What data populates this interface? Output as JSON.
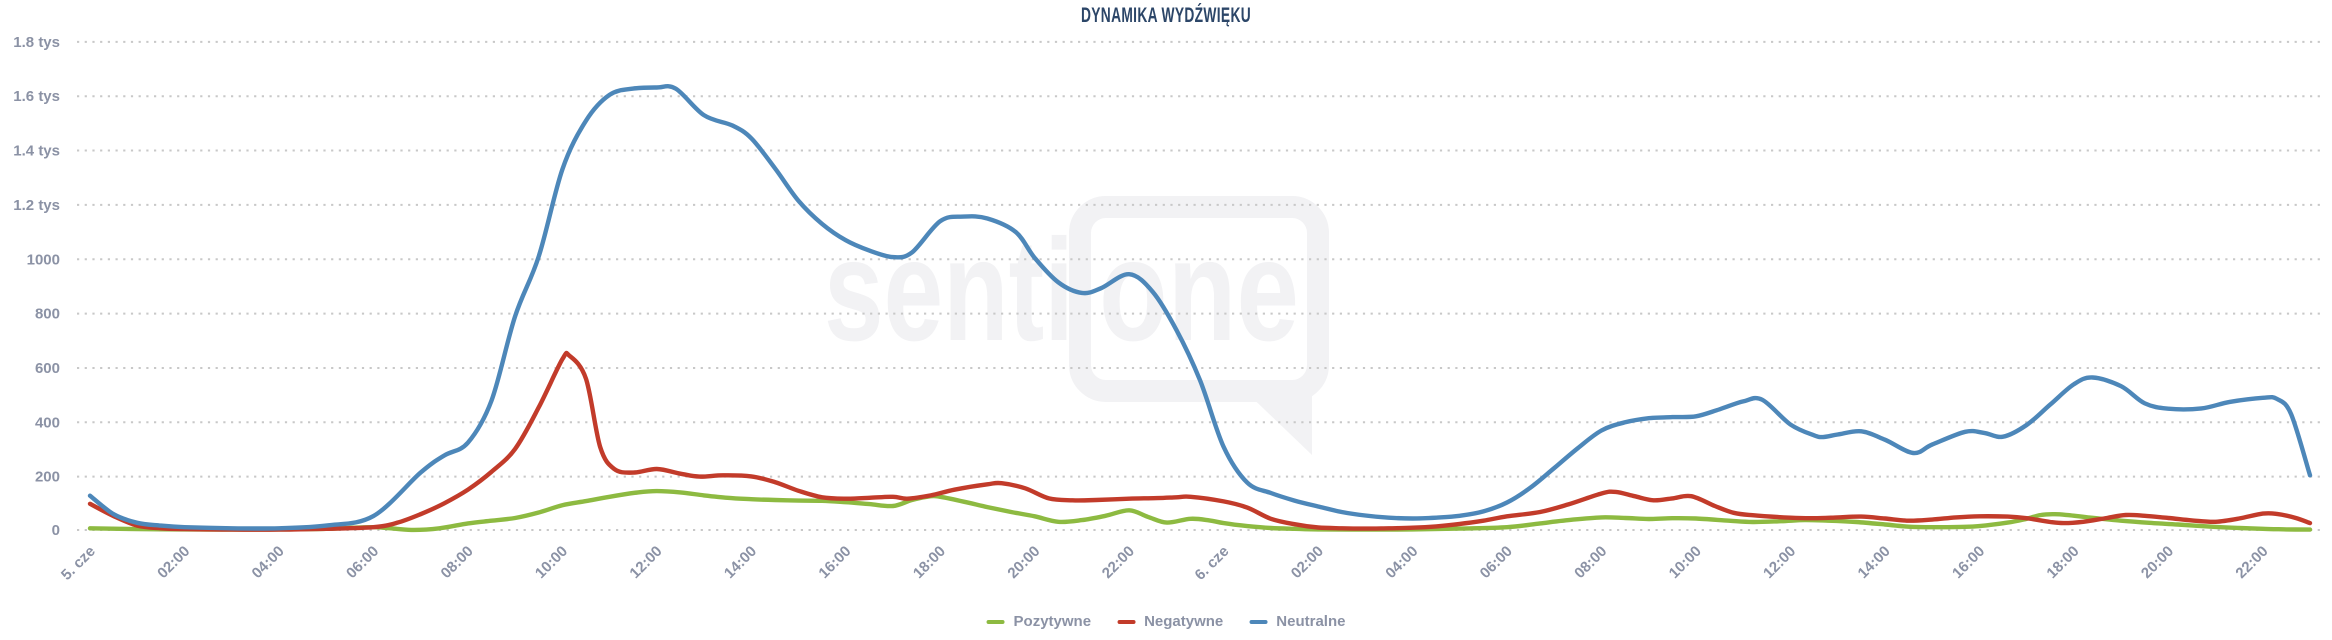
{
  "title": "DYNAMIKA WYDŹWIĘKU",
  "watermark": {
    "brand": "sentione",
    "part1": "senti",
    "part2": "one"
  },
  "colors": {
    "positive": "#8dba41",
    "negative": "#c23b2a",
    "neutral": "#4d87b9",
    "axis_text": "#8b92a5",
    "title_text": "#2c4668",
    "gridline": "#c8c8c8",
    "watermark": "#f2f2f4",
    "background": "#ffffff"
  },
  "chart_data": {
    "type": "line",
    "title": "DYNAMIKA WYDŹWIĘKU",
    "grid": "horizontal-dotted",
    "legend_position": "bottom-center",
    "x_axis": {
      "description": "time, 5-6 June (cze), ticks every 2 hours",
      "tick_labels": [
        "5. cze",
        "02:00",
        "04:00",
        "06:00",
        "08:00",
        "10:00",
        "12:00",
        "14:00",
        "16:00",
        "18:00",
        "20:00",
        "22:00",
        "6. cze",
        "02:00",
        "04:00",
        "06:00",
        "08:00",
        "10:00",
        "12:00",
        "14:00",
        "16:00",
        "18:00",
        "20:00",
        "22:00"
      ],
      "tick_interval_hours": 2,
      "hours_domain": [
        0,
        47
      ]
    },
    "y_axis": {
      "range": [
        0,
        1800
      ],
      "ticks": [
        {
          "v": 0,
          "label": "0"
        },
        {
          "v": 200,
          "label": "200"
        },
        {
          "v": 400,
          "label": "400"
        },
        {
          "v": 600,
          "label": "600"
        },
        {
          "v": 800,
          "label": "800"
        },
        {
          "v": 1000,
          "label": "1000"
        },
        {
          "v": 1200,
          "label": "1.2 tys"
        },
        {
          "v": 1400,
          "label": "1.4 tys"
        },
        {
          "v": 1600,
          "label": "1.6 tys"
        },
        {
          "v": 1800,
          "label": "1.8 tys"
        }
      ]
    },
    "series": [
      {
        "id": "pozytywne",
        "name": "Pozytywne",
        "color": "#8dba41",
        "points": [
          [
            0,
            10
          ],
          [
            1,
            7
          ],
          [
            2,
            6
          ],
          [
            3,
            5
          ],
          [
            4,
            6
          ],
          [
            5,
            8
          ],
          [
            6,
            14
          ],
          [
            6.8,
            4
          ],
          [
            7.4,
            10
          ],
          [
            8,
            28
          ],
          [
            8.5,
            38
          ],
          [
            9,
            48
          ],
          [
            9.5,
            68
          ],
          [
            10,
            95
          ],
          [
            10.5,
            110
          ],
          [
            11,
            126
          ],
          [
            11.6,
            142
          ],
          [
            12,
            147
          ],
          [
            12.5,
            142
          ],
          [
            13,
            131
          ],
          [
            13.5,
            122
          ],
          [
            14,
            117
          ],
          [
            14.5,
            114
          ],
          [
            15,
            112
          ],
          [
            15.5,
            111
          ],
          [
            16,
            106
          ],
          [
            16.5,
            99
          ],
          [
            17,
            92
          ],
          [
            17.4,
            114
          ],
          [
            17.8,
            128
          ],
          [
            18,
            126
          ],
          [
            18.5,
            108
          ],
          [
            19,
            88
          ],
          [
            19.5,
            70
          ],
          [
            20,
            54
          ],
          [
            20.5,
            34
          ],
          [
            21,
            40
          ],
          [
            21.5,
            56
          ],
          [
            22,
            76
          ],
          [
            22.4,
            52
          ],
          [
            22.8,
            31
          ],
          [
            23.3,
            45
          ],
          [
            23.7,
            39
          ],
          [
            24,
            29
          ],
          [
            24.5,
            18
          ],
          [
            25,
            11
          ],
          [
            25.5,
            8
          ],
          [
            26,
            6
          ],
          [
            27,
            5
          ],
          [
            28,
            6
          ],
          [
            29,
            9
          ],
          [
            30,
            14
          ],
          [
            30.7,
            28
          ],
          [
            31.4,
            42
          ],
          [
            32,
            50
          ],
          [
            32.5,
            48
          ],
          [
            33,
            44
          ],
          [
            33.5,
            47
          ],
          [
            34,
            46
          ],
          [
            34.7,
            38
          ],
          [
            35.2,
            33
          ],
          [
            35.8,
            36
          ],
          [
            36.3,
            40
          ],
          [
            36.8,
            38
          ],
          [
            37.4,
            33
          ],
          [
            38,
            24
          ],
          [
            38.5,
            16
          ],
          [
            39,
            14
          ],
          [
            39.6,
            15
          ],
          [
            40,
            18
          ],
          [
            40.6,
            31
          ],
          [
            41,
            45
          ],
          [
            41.3,
            59
          ],
          [
            41.6,
            62
          ],
          [
            41.9,
            58
          ],
          [
            42.3,
            50
          ],
          [
            43,
            38
          ],
          [
            43.6,
            30
          ],
          [
            44.2,
            24
          ],
          [
            45,
            15
          ],
          [
            45.5,
            11
          ],
          [
            46,
            8
          ],
          [
            46.5,
            6
          ],
          [
            47,
            5
          ]
        ]
      },
      {
        "id": "negatywne",
        "name": "Negatywne",
        "color": "#c23b2a",
        "points": [
          [
            0,
            100
          ],
          [
            0.5,
            55
          ],
          [
            1,
            20
          ],
          [
            1.5,
            10
          ],
          [
            2,
            7
          ],
          [
            3,
            5
          ],
          [
            4,
            5
          ],
          [
            5,
            8
          ],
          [
            6,
            14
          ],
          [
            6.5,
            30
          ],
          [
            7,
            62
          ],
          [
            7.5,
            102
          ],
          [
            8,
            152
          ],
          [
            8.5,
            218
          ],
          [
            9,
            302
          ],
          [
            9.5,
            455
          ],
          [
            10,
            632
          ],
          [
            10.15,
            645
          ],
          [
            10.5,
            560
          ],
          [
            10.8,
            310
          ],
          [
            11.1,
            228
          ],
          [
            11.5,
            215
          ],
          [
            12,
            228
          ],
          [
            12.5,
            211
          ],
          [
            12.9,
            200
          ],
          [
            13.4,
            205
          ],
          [
            14,
            201
          ],
          [
            14.5,
            180
          ],
          [
            15,
            148
          ],
          [
            15.5,
            124
          ],
          [
            16,
            119
          ],
          [
            16.5,
            122
          ],
          [
            17,
            126
          ],
          [
            17.3,
            119
          ],
          [
            17.8,
            131
          ],
          [
            18.3,
            152
          ],
          [
            19,
            172
          ],
          [
            19.3,
            176
          ],
          [
            19.8,
            157
          ],
          [
            20.3,
            120
          ],
          [
            20.8,
            113
          ],
          [
            21.3,
            114
          ],
          [
            22,
            119
          ],
          [
            22.6,
            121
          ],
          [
            23,
            124
          ],
          [
            23.3,
            126
          ],
          [
            24,
            109
          ],
          [
            24.5,
            86
          ],
          [
            25,
            45
          ],
          [
            25.5,
            25
          ],
          [
            26,
            13
          ],
          [
            26.5,
            10
          ],
          [
            27,
            9
          ],
          [
            27.5,
            10
          ],
          [
            28,
            12
          ],
          [
            28.5,
            17
          ],
          [
            29,
            26
          ],
          [
            29.5,
            38
          ],
          [
            30,
            54
          ],
          [
            30.7,
            70
          ],
          [
            31.3,
            98
          ],
          [
            32,
            138
          ],
          [
            32.3,
            144
          ],
          [
            32.7,
            128
          ],
          [
            33.1,
            113
          ],
          [
            33.5,
            120
          ],
          [
            33.9,
            128
          ],
          [
            34.4,
            92
          ],
          [
            34.8,
            67
          ],
          [
            35.2,
            58
          ],
          [
            36,
            49
          ],
          [
            36.5,
            47
          ],
          [
            37,
            50
          ],
          [
            37.5,
            53
          ],
          [
            38,
            46
          ],
          [
            38.5,
            38
          ],
          [
            39,
            42
          ],
          [
            39.5,
            50
          ],
          [
            40,
            54
          ],
          [
            40.6,
            53
          ],
          [
            41,
            47
          ],
          [
            41.5,
            33
          ],
          [
            41.8,
            29
          ],
          [
            42.2,
            34
          ],
          [
            42.7,
            48
          ],
          [
            43.1,
            59
          ],
          [
            43.5,
            56
          ],
          [
            44,
            48
          ],
          [
            44.5,
            39
          ],
          [
            45,
            34
          ],
          [
            45.5,
            46
          ],
          [
            46,
            64
          ],
          [
            46.3,
            63
          ],
          [
            46.7,
            48
          ],
          [
            47,
            29
          ]
        ]
      },
      {
        "id": "neutralne",
        "name": "Neutralne",
        "color": "#4d87b9",
        "points": [
          [
            0,
            130
          ],
          [
            0.5,
            62
          ],
          [
            1,
            30
          ],
          [
            1.5,
            20
          ],
          [
            2,
            14
          ],
          [
            3,
            10
          ],
          [
            4,
            10
          ],
          [
            5,
            20
          ],
          [
            6,
            55
          ],
          [
            7,
            215
          ],
          [
            7.5,
            278
          ],
          [
            8,
            325
          ],
          [
            8.5,
            480
          ],
          [
            9,
            790
          ],
          [
            9.5,
            1010
          ],
          [
            10,
            1330
          ],
          [
            10.5,
            1510
          ],
          [
            11,
            1605
          ],
          [
            11.5,
            1628
          ],
          [
            12,
            1632
          ],
          [
            12.4,
            1628
          ],
          [
            13,
            1530
          ],
          [
            13.6,
            1492
          ],
          [
            14,
            1445
          ],
          [
            14.5,
            1335
          ],
          [
            15,
            1215
          ],
          [
            15.5,
            1130
          ],
          [
            16,
            1070
          ],
          [
            16.5,
            1032
          ],
          [
            17,
            1008
          ],
          [
            17.4,
            1025
          ],
          [
            18,
            1140
          ],
          [
            18.5,
            1157
          ],
          [
            19,
            1150
          ],
          [
            19.6,
            1100
          ],
          [
            20,
            1005
          ],
          [
            20.5,
            915
          ],
          [
            21,
            876
          ],
          [
            21.4,
            893
          ],
          [
            22,
            945
          ],
          [
            22.5,
            880
          ],
          [
            23,
            740
          ],
          [
            23.5,
            555
          ],
          [
            24,
            310
          ],
          [
            24.5,
            178
          ],
          [
            25,
            140
          ],
          [
            25.5,
            112
          ],
          [
            26,
            90
          ],
          [
            26.5,
            70
          ],
          [
            27,
            57
          ],
          [
            27.5,
            49
          ],
          [
            28,
            46
          ],
          [
            28.5,
            49
          ],
          [
            29,
            56
          ],
          [
            29.5,
            72
          ],
          [
            30,
            105
          ],
          [
            30.5,
            160
          ],
          [
            31,
            232
          ],
          [
            31.5,
            305
          ],
          [
            32,
            370
          ],
          [
            32.5,
            400
          ],
          [
            33,
            415
          ],
          [
            33.5,
            419
          ],
          [
            34,
            422
          ],
          [
            34.5,
            448
          ],
          [
            35,
            477
          ],
          [
            35.4,
            483
          ],
          [
            36,
            392
          ],
          [
            36.5,
            352
          ],
          [
            36.7,
            346
          ],
          [
            37,
            355
          ],
          [
            37.5,
            367
          ],
          [
            38,
            336
          ],
          [
            38.6,
            287
          ],
          [
            39,
            318
          ],
          [
            39.7,
            365
          ],
          [
            40.1,
            361
          ],
          [
            40.5,
            347
          ],
          [
            41,
            390
          ],
          [
            41.5,
            465
          ],
          [
            42,
            540
          ],
          [
            42.4,
            565
          ],
          [
            43,
            533
          ],
          [
            43.5,
            470
          ],
          [
            44,
            450
          ],
          [
            44.7,
            451
          ],
          [
            45.3,
            475
          ],
          [
            46,
            490
          ],
          [
            46.3,
            486
          ],
          [
            46.6,
            430
          ],
          [
            47,
            205
          ]
        ]
      }
    ]
  }
}
